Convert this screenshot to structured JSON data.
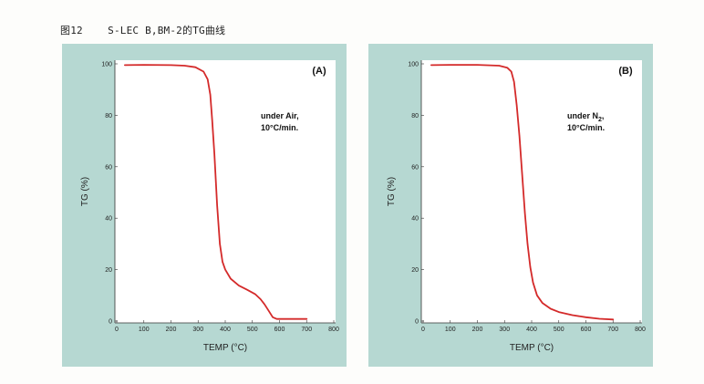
{
  "figure_title": "图12    S-LEC B,BM-2的TG曲线",
  "colors": {
    "panel_bg": "#b6d8d2",
    "plot_bg": "#ffffff",
    "curve": "#d42a2a",
    "axis": "#333333"
  },
  "chart_data": [
    {
      "type": "line",
      "panel_label": "(A)",
      "annotation_lines": [
        "under Air,",
        "10°C/min."
      ],
      "xlabel": "TEMP (°C)",
      "ylabel": "TG (%)",
      "xlim": [
        0,
        800
      ],
      "ylim": [
        0,
        100
      ],
      "xticks": [
        "0",
        "100",
        "200",
        "300",
        "400",
        "500",
        "600",
        "700",
        "800"
      ],
      "yticks": [
        "0",
        "20",
        "40",
        "60",
        "80",
        "100"
      ],
      "grid": false,
      "series": [
        {
          "x": [
            30,
            100,
            200,
            250,
            290,
            320,
            335,
            345,
            352,
            360,
            370,
            380,
            390,
            400,
            420,
            450,
            480,
            510,
            530,
            545,
            560,
            575,
            590,
            650,
            700
          ],
          "y": [
            99.5,
            99.6,
            99.5,
            99.3,
            98.7,
            97,
            94,
            88,
            78,
            65,
            45,
            30,
            23,
            20,
            16.5,
            13.8,
            12.2,
            10.5,
            8.5,
            6.5,
            4.0,
            1.5,
            0.8,
            0.8,
            0.8
          ]
        }
      ]
    },
    {
      "type": "line",
      "panel_label": "(B)",
      "annotation_lines": [
        "under N",
        "2",
        ",",
        "10°C/min."
      ],
      "xlabel": "TEMP (°C)",
      "ylabel": "TG (%)",
      "xlim": [
        0,
        800
      ],
      "ylim": [
        0,
        100
      ],
      "xticks": [
        "0",
        "100",
        "200",
        "300",
        "400",
        "500",
        "600",
        "700",
        "800"
      ],
      "yticks": [
        "0",
        "20",
        "40",
        "60",
        "80",
        "100"
      ],
      "grid": false,
      "series": [
        {
          "x": [
            30,
            100,
            200,
            280,
            310,
            325,
            335,
            345,
            355,
            365,
            375,
            385,
            395,
            405,
            420,
            440,
            470,
            500,
            550,
            600,
            650,
            700
          ],
          "y": [
            99.5,
            99.6,
            99.6,
            99.3,
            98.5,
            97,
            93,
            84,
            72,
            57,
            42,
            30,
            21,
            15,
            10,
            7,
            4.8,
            3.5,
            2.3,
            1.5,
            0.9,
            0.6
          ]
        }
      ]
    }
  ]
}
